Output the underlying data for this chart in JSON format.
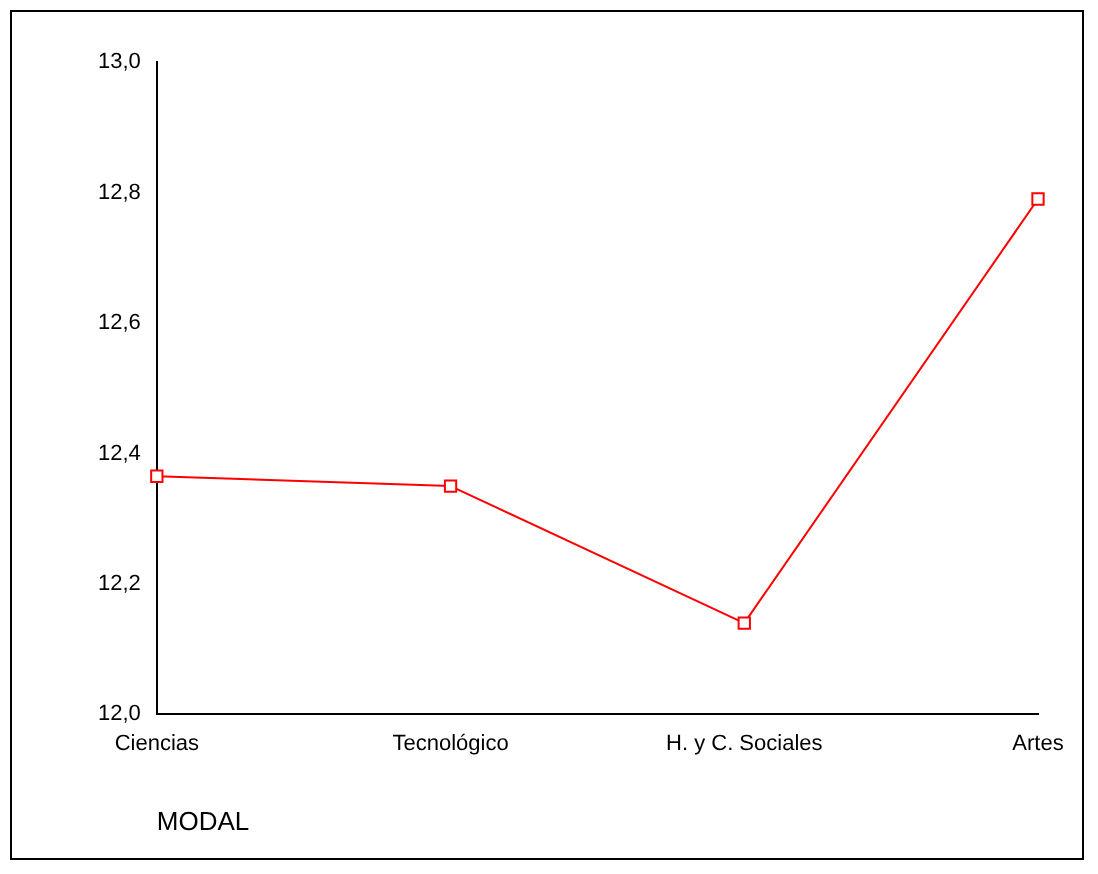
{
  "chart_data": {
    "type": "line",
    "xlabel": "MODAL",
    "categories": [
      "Ciencias",
      "Tecnológico",
      "H. y C. Sociales",
      "Artes"
    ],
    "series": [
      {
        "color": "#ff0000",
        "values": [
          12.365,
          12.35,
          12.14,
          12.79
        ]
      }
    ],
    "ylim": [
      12.0,
      13.0
    ],
    "yticks": [
      {
        "value": 12.0,
        "label": "12,0"
      },
      {
        "value": 12.2,
        "label": "12,2"
      },
      {
        "value": 12.4,
        "label": "12,4"
      },
      {
        "value": 12.6,
        "label": "12,6"
      },
      {
        "value": 12.8,
        "label": "12,8"
      },
      {
        "value": 13.0,
        "label": "13,0"
      }
    ],
    "grid": false,
    "legend": false,
    "marker": "square",
    "line_style": "solid"
  }
}
